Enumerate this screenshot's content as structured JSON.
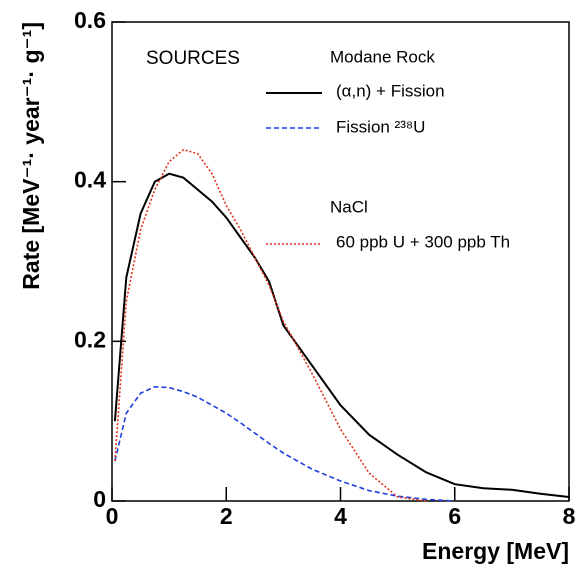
{
  "chart_data": {
    "type": "line",
    "xlabel": "Energy [MeV]",
    "ylabel": "Rate [MeV⁻¹· year⁻¹· g⁻¹]",
    "annotations": [
      "SOURCES",
      "Modane Rock",
      "NaCl"
    ],
    "x": [
      0.05,
      0.25,
      0.5,
      0.75,
      1,
      1.25,
      1.5,
      1.75,
      2,
      2.25,
      2.5,
      2.75,
      3,
      3.5,
      4,
      4.5,
      5,
      5.5,
      6,
      6.5,
      7,
      7.5,
      8
    ],
    "series": [
      {
        "name": "(α,n) + Fission",
        "color": "#000000",
        "dash": "solid",
        "values": [
          0.1,
          0.28,
          0.36,
          0.4,
          0.41,
          0.405,
          0.39,
          0.375,
          0.355,
          0.33,
          0.305,
          0.275,
          0.22,
          0.17,
          0.12,
          0.083,
          0.058,
          0.036,
          0.021,
          0.016,
          0.014,
          0.009,
          0.005
        ]
      },
      {
        "name": "Fission ²³⁸U",
        "color": "#1f3fe0",
        "dash": "dashed",
        "values": [
          0.05,
          0.11,
          0.135,
          0.143,
          0.142,
          0.137,
          0.13,
          0.12,
          0.11,
          0.098,
          0.085,
          0.072,
          0.06,
          0.04,
          0.025,
          0.013,
          0.006,
          0.002,
          0,
          null,
          null,
          null,
          null
        ]
      },
      {
        "name": "60 ppb U + 300 ppb Th",
        "color": "#e0301e",
        "dash": "dotted",
        "values": [
          0.05,
          0.25,
          0.34,
          0.39,
          0.425,
          0.44,
          0.435,
          0.41,
          0.37,
          0.34,
          0.305,
          0.27,
          0.225,
          0.16,
          0.09,
          0.035,
          0.005,
          0,
          null,
          null,
          null,
          null,
          null
        ]
      }
    ],
    "xlim": [
      0,
      8
    ],
    "xticks": [
      0,
      2,
      4,
      6,
      8
    ],
    "ylim": [
      0,
      0.6
    ],
    "yticks": [
      0,
      0.2,
      0.4,
      0.6
    ]
  }
}
